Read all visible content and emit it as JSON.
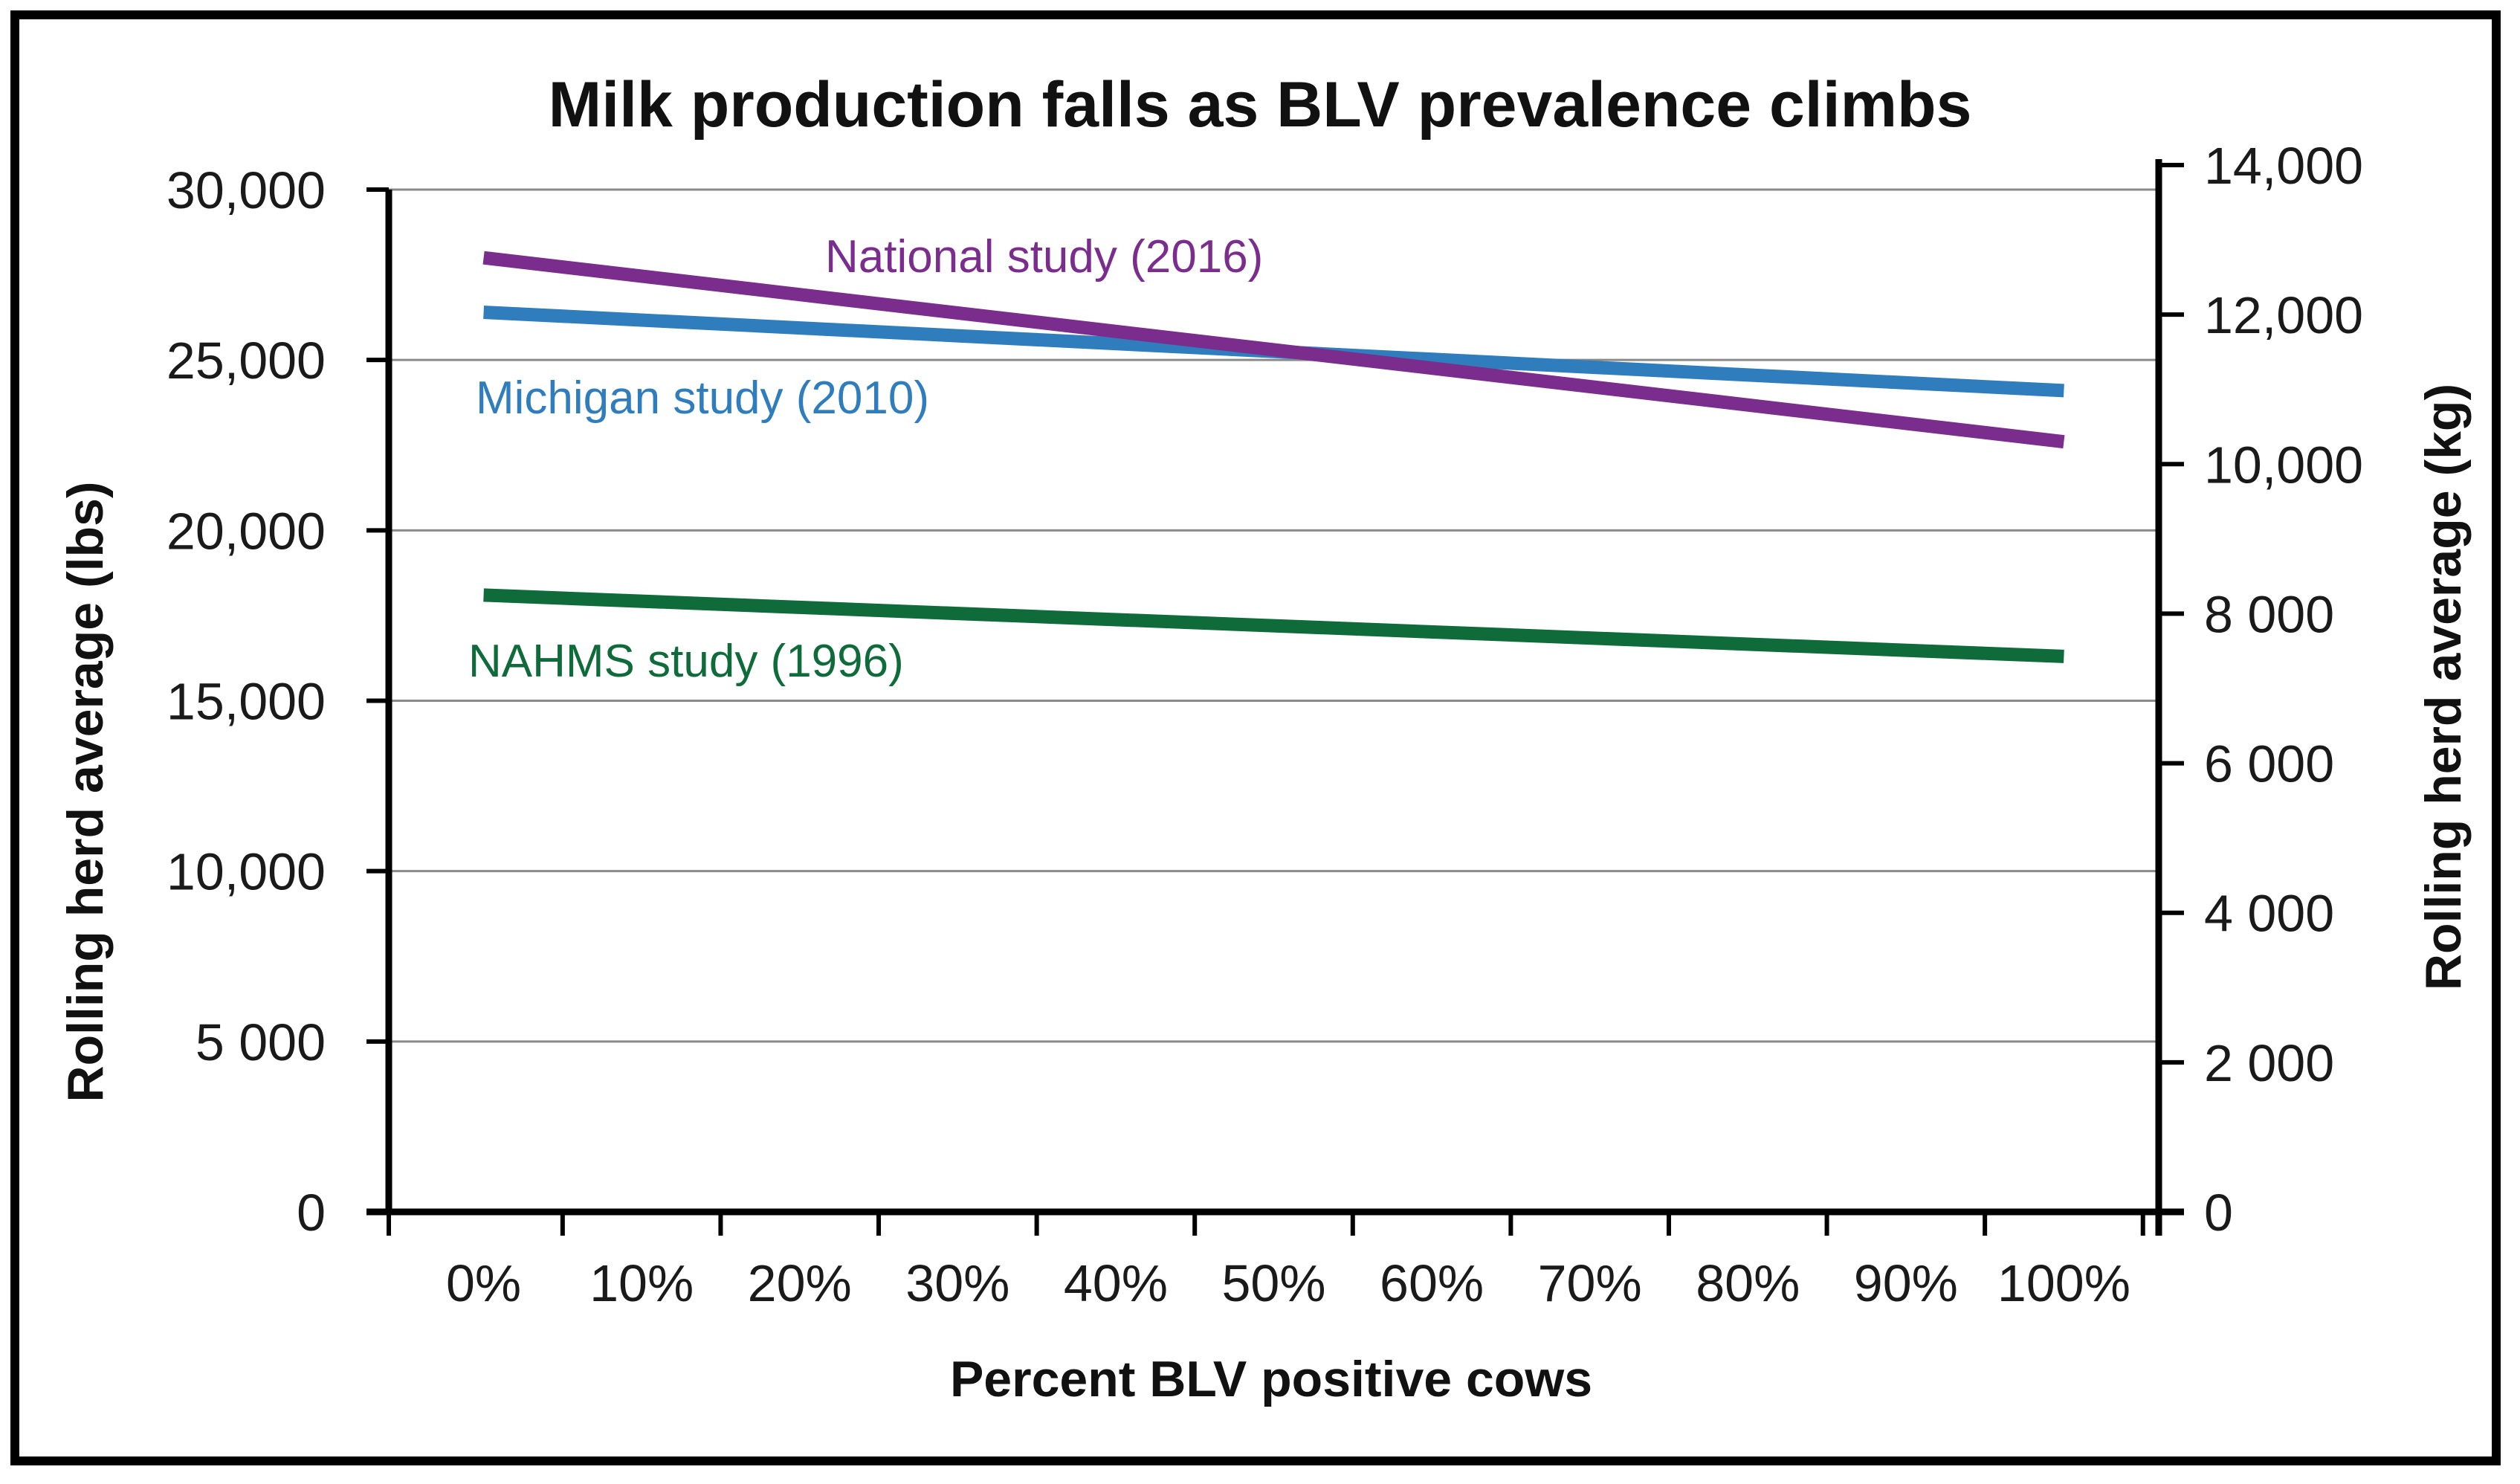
{
  "chart_data": {
    "type": "line",
    "title": "Milk production falls as BLV prevalence climbs",
    "xlabel": "Percent BLV positive cows",
    "ylabel_left": "Rolling herd average (lbs)",
    "ylabel_right": "Rolling herd average (kg)",
    "x_ticks": [
      "0%",
      "10%",
      "20%",
      "30%",
      "40%",
      "50%",
      "60%",
      "70%",
      "80%",
      "90%",
      "100%"
    ],
    "x_values": [
      0,
      10,
      20,
      30,
      40,
      50,
      60,
      70,
      80,
      90,
      100
    ],
    "xlim": [
      -6,
      106
    ],
    "y_ticks_left": [
      "0",
      "5 000",
      "10,000",
      "15,000",
      "20,000",
      "25,000",
      "30,000"
    ],
    "y_tick_values_left": [
      0,
      5000,
      10000,
      15000,
      20000,
      25000,
      30000
    ],
    "ylim_left": [
      0,
      30000
    ],
    "y_ticks_right": [
      "0",
      "2 000",
      "4 000",
      "6 000",
      "8 000",
      "10,000",
      "12,000",
      "14,000"
    ],
    "y_tick_values_right": [
      0,
      2000,
      4000,
      6000,
      8000,
      10000,
      12000,
      14000
    ],
    "ylim_right": [
      0,
      14000
    ],
    "grid": true,
    "series": [
      {
        "name": "National study (2016)",
        "color": "#7b2d8e",
        "x": [
          0,
          100
        ],
        "y": [
          28000,
          22600
        ]
      },
      {
        "name": "Michigan study (2010)",
        "color": "#2f7dbd",
        "x": [
          0,
          100
        ],
        "y": [
          26400,
          24100
        ]
      },
      {
        "name": "NAHMS study (1996)",
        "color": "#0f6b3a",
        "x": [
          0,
          100
        ],
        "y": [
          18100,
          16300
        ]
      }
    ]
  }
}
